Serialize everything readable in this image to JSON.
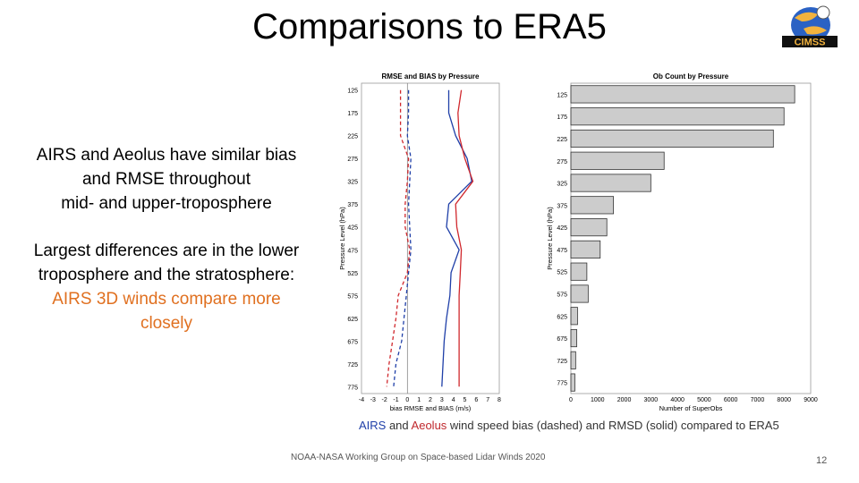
{
  "slide": {
    "title": "Comparisons to ERA5",
    "logo_text": "CIMSS",
    "para1": [
      "AIRS and Aeolus have similar bias",
      "and RMSE throughout",
      "mid- and upper-troposphere"
    ],
    "para2": [
      "Largest differences are in the lower",
      "troposphere and the stratosphere:"
    ],
    "para2_highlight": [
      "AIRS 3D winds compare more",
      "closely"
    ],
    "caption": {
      "airs": "AIRS",
      "and": " and ",
      "aeolus": "Aeolus",
      "rest": " wind speed bias (dashed) and RMSD (solid) compared to ERA5"
    },
    "footer": "NOAA-NASA Working Group on Space-based Lidar Winds 2020",
    "page_number": "12"
  },
  "colors": {
    "airs": "#1f3fa8",
    "aeolus": "#d0282d",
    "highlight": "#e07020",
    "bar": "#cccccc"
  },
  "chart_data": [
    {
      "type": "line",
      "title": "RMSE and BIAS by Pressure",
      "xlabel": "bias RMSE and BIAS (m/s)",
      "ylabel": "Pressure Level (hPa)",
      "y": [
        125,
        175,
        225,
        275,
        325,
        375,
        425,
        475,
        525,
        575,
        625,
        675,
        725,
        775
      ],
      "ylim": [
        110,
        790
      ],
      "xlim": [
        -4,
        8
      ],
      "xticks": [
        -4,
        -3,
        -2,
        -1,
        0,
        1,
        2,
        3,
        4,
        5,
        6,
        7,
        8
      ],
      "series": [
        {
          "label": "AIRS bias",
          "color": "#1f3fa8",
          "style": "dashed",
          "values": [
            0.1,
            0.1,
            0.0,
            0.3,
            0.2,
            0.1,
            0.2,
            0.3,
            0.1,
            -0.1,
            -0.3,
            -0.5,
            -1.0,
            -1.2
          ]
        },
        {
          "label": "Aeolus bias",
          "color": "#d0282d",
          "style": "dashed",
          "values": [
            -0.6,
            -0.6,
            -0.6,
            0.1,
            0.0,
            -0.2,
            -0.2,
            0.2,
            0.0,
            -0.8,
            -1.0,
            -1.3,
            -1.6,
            -1.8
          ]
        },
        {
          "label": "AIRS RMSD",
          "color": "#1f3fa8",
          "style": "solid",
          "values": [
            3.6,
            3.6,
            4.2,
            5.2,
            5.6,
            3.6,
            3.4,
            4.5,
            3.8,
            3.7,
            3.4,
            3.2,
            3.1,
            3.0
          ]
        },
        {
          "label": "Aeolus RMSD",
          "color": "#d0282d",
          "style": "solid",
          "values": [
            4.7,
            4.4,
            4.5,
            5.0,
            5.7,
            4.2,
            4.3,
            4.7,
            4.6,
            4.5,
            4.5,
            4.5,
            4.5,
            4.5
          ]
        }
      ],
      "grid": false,
      "vline_at": 0
    },
    {
      "type": "bar",
      "orientation": "horizontal",
      "title": "Ob Count by Pressure",
      "xlabel": "Number of SuperObs",
      "ylabel": "Pressure Level (hPa)",
      "categories": [
        "125",
        "175",
        "225",
        "275",
        "325",
        "375",
        "425",
        "475",
        "525",
        "575",
        "625",
        "675",
        "725",
        "775"
      ],
      "values": [
        8400,
        8000,
        7600,
        3500,
        3000,
        1600,
        1350,
        1100,
        600,
        650,
        250,
        220,
        180,
        150
      ],
      "xlim": [
        0,
        9000
      ],
      "xticks": [
        "0",
        "1000",
        "2000",
        "3000",
        "4000",
        "5000",
        "6000",
        "7000",
        "8000",
        "9000"
      ],
      "grid": false
    }
  ]
}
